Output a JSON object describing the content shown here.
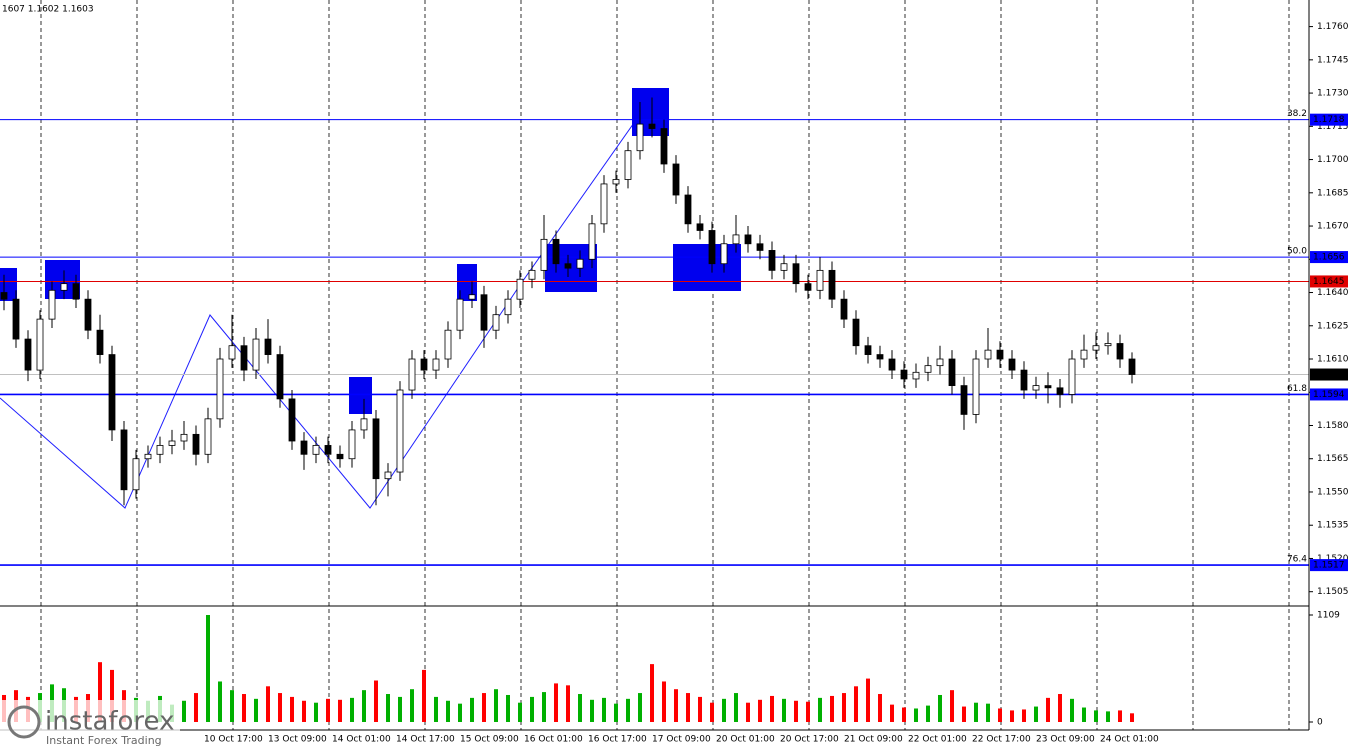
{
  "chart_data": {
    "type": "candlestick",
    "header": "1607 1.1602 1.1603",
    "ylim": [
      1.1499,
      1.1772
    ],
    "yticks": [
      {
        "value": 1.176,
        "label": "1.1760"
      },
      1.1745,
      {
        "value": 1.173,
        "label": "1.1730"
      },
      1.1715,
      {
        "value": 1.17,
        "label": "1.1700"
      },
      1.1685,
      {
        "value": 1.167,
        "label": "1.1670"
      },
      1.1655,
      {
        "value": 1.164,
        "label": "1.1640"
      },
      1.1625,
      {
        "value": 1.161,
        "label": "1.1610"
      },
      1.1595,
      {
        "value": 1.158,
        "label": "1.1580"
      },
      1.1565,
      {
        "value": 1.155,
        "label": "1.1550"
      },
      1.1535,
      {
        "value": 1.152,
        "label": "1.1520"
      },
      1.1505
    ],
    "levels": [
      {
        "value": 1.1718,
        "label": "38.2",
        "color": "#0000ff"
      },
      {
        "value": 1.1656,
        "label": "50.0",
        "color": "#0000ff"
      },
      {
        "value": 1.1645,
        "color": "#e00000"
      },
      {
        "value": 1.1594,
        "label": "61.8",
        "color": "#0000ff"
      },
      {
        "value": 1.1517,
        "label": "76.4",
        "color": "#0000ff"
      }
    ],
    "last": 1.1603,
    "candles": [
      [
        1.164,
        1.1648,
        1.1632,
        1.1637
      ],
      [
        1.1637,
        1.1641,
        1.1615,
        1.1619
      ],
      [
        1.1619,
        1.1623,
        1.16,
        1.1605
      ],
      [
        1.1605,
        1.1632,
        1.1601,
        1.1628
      ],
      [
        1.1628,
        1.1645,
        1.1624,
        1.1641
      ],
      [
        1.1641,
        1.165,
        1.1637,
        1.1644
      ],
      [
        1.1644,
        1.1648,
        1.1633,
        1.1637
      ],
      [
        1.1637,
        1.1641,
        1.1619,
        1.1623
      ],
      [
        1.1623,
        1.163,
        1.1608,
        1.1612
      ],
      [
        1.1612,
        1.1616,
        1.1573,
        1.1578
      ],
      [
        1.1578,
        1.1582,
        1.1544,
        1.1551
      ],
      [
        1.1551,
        1.1569,
        1.1547,
        1.1565
      ],
      [
        1.1565,
        1.1571,
        1.1561,
        1.1567
      ],
      [
        1.1567,
        1.1575,
        1.1563,
        1.1571
      ],
      [
        1.1571,
        1.1578,
        1.1567,
        1.1573
      ],
      [
        1.1573,
        1.1582,
        1.1569,
        1.1576
      ],
      [
        1.1576,
        1.158,
        1.1562,
        1.1567
      ],
      [
        1.1567,
        1.1588,
        1.1563,
        1.1583
      ],
      [
        1.1583,
        1.1615,
        1.1579,
        1.161
      ],
      [
        1.161,
        1.163,
        1.1606,
        1.1616
      ],
      [
        1.1616,
        1.162,
        1.16,
        1.1605
      ],
      [
        1.1605,
        1.1624,
        1.1601,
        1.1619
      ],
      [
        1.1619,
        1.1628,
        1.1608,
        1.1612
      ],
      [
        1.1612,
        1.1616,
        1.1588,
        1.1592
      ],
      [
        1.1592,
        1.1596,
        1.1569,
        1.1573
      ],
      [
        1.1573,
        1.1577,
        1.156,
        1.1567
      ],
      [
        1.1567,
        1.1575,
        1.1563,
        1.1571
      ],
      [
        1.1571,
        1.1575,
        1.1563,
        1.1567
      ],
      [
        1.1567,
        1.1571,
        1.1561,
        1.1565
      ],
      [
        1.1565,
        1.1582,
        1.1561,
        1.1578
      ],
      [
        1.1578,
        1.1592,
        1.1574,
        1.1583
      ],
      [
        1.1583,
        1.1587,
        1.1544,
        1.1556
      ],
      [
        1.1556,
        1.1563,
        1.1548,
        1.1559
      ],
      [
        1.1559,
        1.16,
        1.1555,
        1.1596
      ],
      [
        1.1596,
        1.1614,
        1.1592,
        1.161
      ],
      [
        1.161,
        1.1614,
        1.1601,
        1.1605
      ],
      [
        1.1605,
        1.1614,
        1.1601,
        1.161
      ],
      [
        1.161,
        1.1627,
        1.1606,
        1.1623
      ],
      [
        1.1623,
        1.1641,
        1.1619,
        1.1637
      ],
      [
        1.1637,
        1.1645,
        1.1633,
        1.1639
      ],
      [
        1.1639,
        1.1643,
        1.1615,
        1.1623
      ],
      [
        1.1623,
        1.1634,
        1.1619,
        1.163
      ],
      [
        1.163,
        1.1641,
        1.1626,
        1.1637
      ],
      [
        1.1637,
        1.165,
        1.1633,
        1.1646
      ],
      [
        1.1646,
        1.1654,
        1.1642,
        1.165
      ],
      [
        1.165,
        1.1675,
        1.1646,
        1.1664
      ],
      [
        1.1664,
        1.1668,
        1.1649,
        1.1653
      ],
      [
        1.1653,
        1.1657,
        1.1647,
        1.1651
      ],
      [
        1.1651,
        1.1659,
        1.1647,
        1.1655
      ],
      [
        1.1655,
        1.1675,
        1.1651,
        1.1671
      ],
      [
        1.1671,
        1.1693,
        1.1667,
        1.1689
      ],
      [
        1.1689,
        1.1695,
        1.1685,
        1.1691
      ],
      [
        1.1691,
        1.1708,
        1.1687,
        1.1704
      ],
      [
        1.1704,
        1.1726,
        1.17,
        1.1716
      ],
      [
        1.1716,
        1.1728,
        1.171,
        1.1714
      ],
      [
        1.1714,
        1.1718,
        1.1694,
        1.1698
      ],
      [
        1.1698,
        1.1702,
        1.168,
        1.1684
      ],
      [
        1.1684,
        1.1688,
        1.1667,
        1.1671
      ],
      [
        1.1671,
        1.1675,
        1.1664,
        1.1668
      ],
      [
        1.1668,
        1.1672,
        1.1649,
        1.1653
      ],
      [
        1.1653,
        1.1666,
        1.1649,
        1.1662
      ],
      [
        1.1662,
        1.1675,
        1.1658,
        1.1666
      ],
      [
        1.1666,
        1.167,
        1.1658,
        1.1662
      ],
      [
        1.1662,
        1.1666,
        1.1655,
        1.1659
      ],
      [
        1.1659,
        1.1663,
        1.1646,
        1.165
      ],
      [
        1.165,
        1.1657,
        1.1646,
        1.1653
      ],
      [
        1.1653,
        1.1657,
        1.164,
        1.1644
      ],
      [
        1.1644,
        1.1648,
        1.1637,
        1.1641
      ],
      [
        1.1641,
        1.1656,
        1.1637,
        1.165
      ],
      [
        1.165,
        1.1654,
        1.1633,
        1.1637
      ],
      [
        1.1637,
        1.1641,
        1.1624,
        1.1628
      ],
      [
        1.1628,
        1.1632,
        1.1612,
        1.1616
      ],
      [
        1.1616,
        1.162,
        1.1608,
        1.1612
      ],
      [
        1.1612,
        1.1616,
        1.1606,
        1.161
      ],
      [
        1.161,
        1.1614,
        1.1601,
        1.1605
      ],
      [
        1.1605,
        1.1609,
        1.1597,
        1.1601
      ],
      [
        1.1601,
        1.1608,
        1.1597,
        1.1604
      ],
      [
        1.1604,
        1.1611,
        1.16,
        1.1607
      ],
      [
        1.1607,
        1.1616,
        1.1603,
        1.161
      ],
      [
        1.161,
        1.1614,
        1.1594,
        1.1598
      ],
      [
        1.1598,
        1.1602,
        1.1578,
        1.1585
      ],
      [
        1.1585,
        1.1614,
        1.1581,
        1.161
      ],
      [
        1.161,
        1.1624,
        1.1606,
        1.1614
      ],
      [
        1.1614,
        1.1618,
        1.1606,
        1.161
      ],
      [
        1.161,
        1.1614,
        1.1601,
        1.1605
      ],
      [
        1.1605,
        1.1609,
        1.1592,
        1.1596
      ],
      [
        1.1596,
        1.1602,
        1.1592,
        1.1598
      ],
      [
        1.1598,
        1.1604,
        1.159,
        1.1597
      ],
      [
        1.1597,
        1.1601,
        1.1588,
        1.1594
      ],
      [
        1.1594,
        1.1614,
        1.159,
        1.161
      ],
      [
        1.161,
        1.1621,
        1.1606,
        1.1614
      ],
      [
        1.1614,
        1.1622,
        1.161,
        1.1616
      ],
      [
        1.1616,
        1.1622,
        1.1612,
        1.1617
      ],
      [
        1.1617,
        1.1621,
        1.1606,
        1.161
      ],
      [
        1.161,
        1.1613,
        1.1599,
        1.1603
      ]
    ],
    "volumes": [
      280,
      330,
      260,
      300,
      390,
      350,
      260,
      290,
      620,
      540,
      330,
      250,
      220,
      270,
      180,
      220,
      300,
      1109,
      420,
      330,
      290,
      240,
      370,
      300,
      260,
      220,
      200,
      240,
      230,
      250,
      330,
      430,
      290,
      260,
      340,
      540,
      260,
      220,
      190,
      250,
      300,
      340,
      280,
      200,
      260,
      310,
      400,
      380,
      290,
      230,
      250,
      190,
      240,
      300,
      600,
      420,
      340,
      300,
      260,
      200,
      240,
      300,
      200,
      230,
      270,
      240,
      220,
      210,
      250,
      270,
      300,
      370,
      450,
      290,
      180,
      150,
      140,
      170,
      280,
      330,
      160,
      200,
      190,
      140,
      120,
      130,
      160,
      250,
      290,
      240,
      150,
      120,
      110,
      120,
      90
    ],
    "vlim": [
      -83,
      1192
    ],
    "vticks": [
      0,
      1109
    ],
    "up_color": "#00b000",
    "down_color": "#ff0000",
    "xlabels": [
      "10 Oct 17:00",
      "13 Oct 09:00",
      "14 Oct 01:00",
      "14 Oct 17:00",
      "15 Oct 09:00",
      "16 Oct 01:00",
      "16 Oct 17:00",
      "17 Oct 09:00",
      "20 Oct 01:00",
      "20 Oct 17:00",
      "21 Oct 09:00",
      "22 Oct 01:00",
      "22 Oct 17:00",
      "23 Oct 09:00",
      "24 Oct 01:00"
    ],
    "watermark": "instaforex",
    "watermark_sub": "Instant Forex Trading"
  }
}
